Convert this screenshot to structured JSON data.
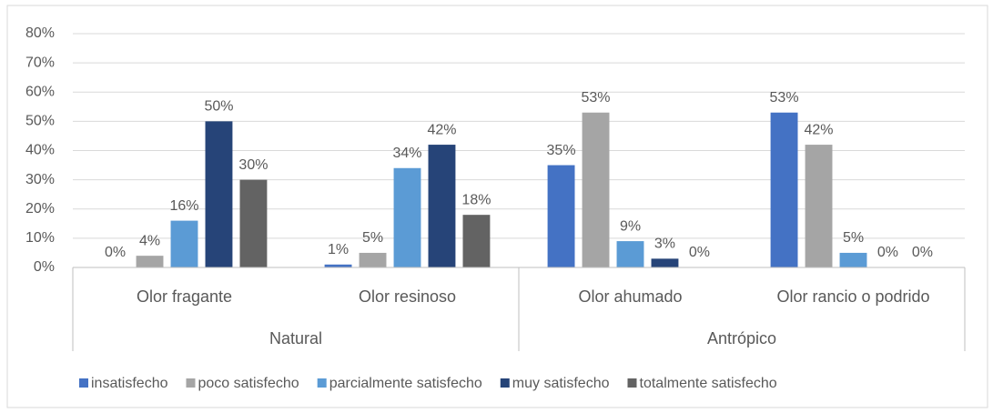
{
  "chart_data": {
    "type": "bar",
    "categories": [
      "Olor fragante",
      "Olor resinoso",
      "Olor ahumado",
      "Olor rancio o podrido"
    ],
    "category_groups": [
      {
        "name": "Natural",
        "span": 2
      },
      {
        "name": "Antrópico",
        "span": 2
      }
    ],
    "series": [
      {
        "name": "insatisfecho",
        "color": "#4472c4",
        "values": [
          0,
          1,
          35,
          53
        ],
        "value_labels": [
          "0%",
          "1%",
          "35%",
          "53%"
        ]
      },
      {
        "name": "poco satisfecho",
        "color": "#a5a5a5",
        "values": [
          4,
          5,
          53,
          42
        ],
        "value_labels": [
          "4%",
          "5%",
          "53%",
          "42%"
        ]
      },
      {
        "name": "parcialmente satisfecho",
        "color": "#5b9bd5",
        "values": [
          16,
          34,
          9,
          5
        ],
        "value_labels": [
          "16%",
          "34%",
          "9%",
          "5%"
        ]
      },
      {
        "name": "muy satisfecho",
        "color": "#264478",
        "values": [
          50,
          42,
          3,
          0
        ],
        "value_labels": [
          "50%",
          "42%",
          "3%",
          "0%"
        ]
      },
      {
        "name": "totalmente satisfecho",
        "color": "#636363",
        "values": [
          30,
          18,
          0,
          0
        ],
        "value_labels": [
          "30%",
          "18%",
          "0%",
          "0%"
        ]
      }
    ],
    "ylim": [
      0,
      80
    ],
    "yticks": [
      {
        "value": 0,
        "label": "0%"
      },
      {
        "value": 10,
        "label": "10%"
      },
      {
        "value": 20,
        "label": "20%"
      },
      {
        "value": 30,
        "label": "30%"
      },
      {
        "value": 40,
        "label": "40%"
      },
      {
        "value": 50,
        "label": "50%"
      },
      {
        "value": 60,
        "label": "60%"
      },
      {
        "value": 70,
        "label": "70%"
      },
      {
        "value": 80,
        "label": "80%"
      }
    ],
    "grid": true,
    "legend": "bottom"
  }
}
